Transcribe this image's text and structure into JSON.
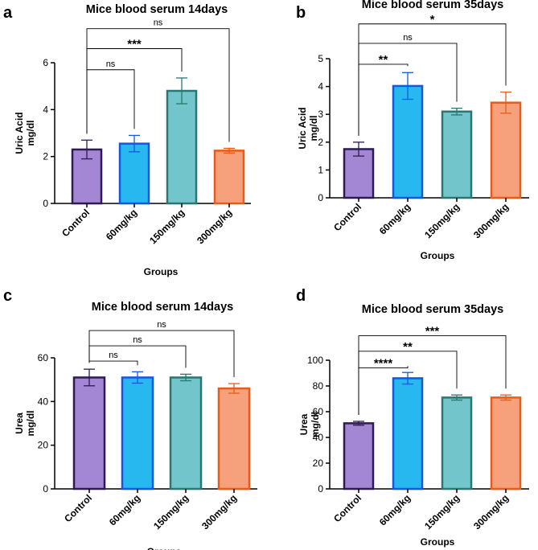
{
  "chart_data": [
    {
      "panel": "a",
      "type": "bar",
      "title": "Mice blood serum 14days",
      "xlabel": "Groups",
      "ylabel": "Uric Acid mg/dl",
      "ylim": [
        0,
        6
      ],
      "yticks": [
        0,
        2,
        4,
        6
      ],
      "categories": [
        "Control",
        "60mg/kg",
        "150mg/kg",
        "300mg/kg"
      ],
      "values": [
        2.3,
        2.55,
        4.8,
        2.25
      ],
      "errors": [
        0.4,
        0.35,
        0.55,
        0.1
      ],
      "colors": [
        "#a386d4",
        "#27b8f0",
        "#72c6cb",
        "#f7a07c"
      ],
      "edge_colors": [
        "#2d1b55",
        "#1457e0",
        "#2a7670",
        "#e85b18"
      ],
      "comparisons": [
        {
          "from": 0,
          "to": 1,
          "label": "ns",
          "y": 5.7
        },
        {
          "from": 0,
          "to": 2,
          "label": "***",
          "y": 6.6
        },
        {
          "from": 0,
          "to": 3,
          "label": "ns",
          "y": 7.45
        }
      ]
    },
    {
      "panel": "b",
      "type": "bar",
      "title": "Mice blood serum 35days",
      "xlabel": "Groups",
      "ylabel": "Uric Acid mg/dl",
      "ylim": [
        0,
        5
      ],
      "yticks": [
        0,
        1,
        2,
        3,
        4,
        5
      ],
      "categories": [
        "Control",
        "60mg/kg",
        "150mg/kg",
        "300mg/kg"
      ],
      "values": [
        1.75,
        4.02,
        3.1,
        3.42
      ],
      "errors": [
        0.25,
        0.48,
        0.12,
        0.38
      ],
      "colors": [
        "#a386d4",
        "#27b8f0",
        "#72c6cb",
        "#f7a07c"
      ],
      "edge_colors": [
        "#2d1b55",
        "#1457e0",
        "#2a7670",
        "#e85b18"
      ],
      "comparisons": [
        {
          "from": 0,
          "to": 1,
          "label": "**",
          "y": 4.8
        },
        {
          "from": 0,
          "to": 2,
          "label": "ns",
          "y": 5.55
        },
        {
          "from": 0,
          "to": 3,
          "label": "*",
          "y": 6.25
        }
      ]
    },
    {
      "panel": "c",
      "type": "bar",
      "title": "Mice blood serum 14days",
      "xlabel": "Groups",
      "ylabel": "Urea mg/dl",
      "ylim": [
        0,
        60
      ],
      "yticks": [
        0,
        20,
        40,
        60
      ],
      "categories": [
        "Control",
        "60mg/kg",
        "150mg/kg",
        "300mg/kg"
      ],
      "values": [
        51,
        51,
        51,
        46
      ],
      "errors": [
        3.8,
        2.6,
        1.5,
        2.2
      ],
      "colors": [
        "#a386d4",
        "#27b8f0",
        "#72c6cb",
        "#f7a07c"
      ],
      "edge_colors": [
        "#2d1b55",
        "#1457e0",
        "#2a7670",
        "#e85b18"
      ],
      "comparisons": [
        {
          "from": 0,
          "to": 1,
          "label": "ns",
          "y": 58.5
        },
        {
          "from": 0,
          "to": 2,
          "label": "ns",
          "y": 65.5
        },
        {
          "from": 0,
          "to": 3,
          "label": "ns",
          "y": 72.5
        }
      ]
    },
    {
      "panel": "d",
      "type": "bar",
      "title": "Mice blood serum 35days",
      "xlabel": "Groups",
      "ylabel": "Urea mg/dl",
      "ylim": [
        0,
        100
      ],
      "yticks": [
        0,
        20,
        40,
        60,
        80,
        100
      ],
      "categories": [
        "Control",
        "60mg/kg",
        "150mg/kg",
        "300mg/kg"
      ],
      "values": [
        51,
        86,
        71,
        71
      ],
      "errors": [
        1.5,
        4.5,
        2.0,
        2.0
      ],
      "colors": [
        "#a386d4",
        "#27b8f0",
        "#72c6cb",
        "#f7a07c"
      ],
      "edge_colors": [
        "#2d1b55",
        "#1457e0",
        "#2a7670",
        "#e85b18"
      ],
      "comparisons": [
        {
          "from": 0,
          "to": 1,
          "label": "****",
          "y": 94
        },
        {
          "from": 0,
          "to": 2,
          "label": "**",
          "y": 107
        },
        {
          "from": 0,
          "to": 3,
          "label": "***",
          "y": 119
        }
      ]
    }
  ]
}
